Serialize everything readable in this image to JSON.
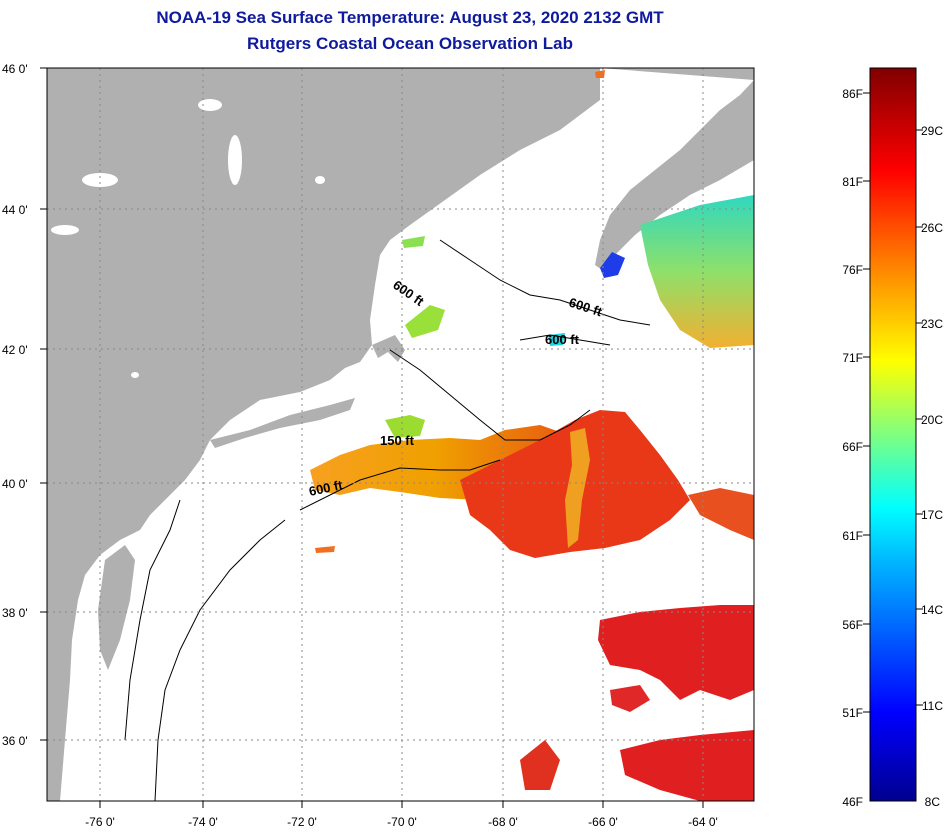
{
  "title": {
    "line1": "NOAA-19 Sea Surface Temperature:  August 23, 2020 2132 GMT",
    "line2": "Rutgers Coastal Ocean Observation Lab"
  },
  "map": {
    "lat_labels": [
      "46 0'",
      "44 0'",
      "42 0'",
      "40 0'",
      "38 0'",
      "36 0'"
    ],
    "lon_labels": [
      "-76 0'",
      "-74 0'",
      "-72 0'",
      "-70 0'",
      "-68 0'",
      "-66 0'",
      "-64 0'"
    ],
    "contour_labels": [
      "600 ft",
      "600 ft",
      "600 ft",
      "150 ft",
      "600 ft"
    ],
    "colors": {
      "land": "#b0b0b0",
      "ocean": "#ffffff",
      "grid": "#888888"
    }
  },
  "colorbar": {
    "f_labels": [
      "86F",
      "81F",
      "76F",
      "71F",
      "66F",
      "61F",
      "56F",
      "51F",
      "46F"
    ],
    "c_labels": [
      "29C",
      "26C",
      "23C",
      "20C",
      "17C",
      "14C",
      "11C",
      "8C"
    ]
  }
}
